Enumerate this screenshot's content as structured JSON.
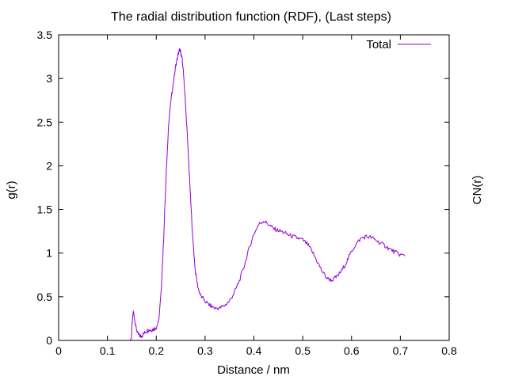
{
  "chart_data": {
    "type": "line",
    "title": "The radial distribution function (RDF), (Last steps)",
    "xlabel": "Distance / nm",
    "ylabel": "g(r)",
    "y2label": "CN(r)",
    "xlim": [
      0,
      0.8
    ],
    "ylim": [
      0,
      3.5
    ],
    "xticks": [
      0,
      0.1,
      0.2,
      0.3,
      0.4,
      0.5,
      0.6,
      0.7,
      0.8
    ],
    "xtick_labels": [
      "0",
      "0.1",
      "0.2",
      "0.3",
      "0.4",
      "0.5",
      "0.6",
      "0.7",
      "0.8"
    ],
    "yticks": [
      0,
      0.5,
      1,
      1.5,
      2,
      2.5,
      3,
      3.5
    ],
    "ytick_labels": [
      "0",
      "0.5",
      "1",
      "1.5",
      "2",
      "2.5",
      "3",
      "3.5"
    ],
    "grid": false,
    "legend_position": "top-right",
    "series": [
      {
        "name": "Total",
        "color": "#9400d3",
        "points": [
          [
            0.145,
            0.0
          ],
          [
            0.149,
            0.02
          ],
          [
            0.151,
            0.22
          ],
          [
            0.153,
            0.33
          ],
          [
            0.155,
            0.27
          ],
          [
            0.158,
            0.16
          ],
          [
            0.162,
            0.08
          ],
          [
            0.166,
            0.05
          ],
          [
            0.17,
            0.05
          ],
          [
            0.175,
            0.08
          ],
          [
            0.18,
            0.11
          ],
          [
            0.185,
            0.12
          ],
          [
            0.19,
            0.12
          ],
          [
            0.195,
            0.13
          ],
          [
            0.2,
            0.15
          ],
          [
            0.205,
            0.22
          ],
          [
            0.21,
            0.55
          ],
          [
            0.215,
            1.15
          ],
          [
            0.22,
            1.85
          ],
          [
            0.225,
            2.45
          ],
          [
            0.23,
            2.75
          ],
          [
            0.235,
            2.95
          ],
          [
            0.24,
            3.15
          ],
          [
            0.245,
            3.28
          ],
          [
            0.248,
            3.33
          ],
          [
            0.25,
            3.3
          ],
          [
            0.253,
            3.22
          ],
          [
            0.256,
            3.05
          ],
          [
            0.26,
            2.7
          ],
          [
            0.265,
            2.2
          ],
          [
            0.27,
            1.65
          ],
          [
            0.275,
            1.15
          ],
          [
            0.28,
            0.8
          ],
          [
            0.285,
            0.62
          ],
          [
            0.29,
            0.52
          ],
          [
            0.3,
            0.45
          ],
          [
            0.31,
            0.4
          ],
          [
            0.32,
            0.37
          ],
          [
            0.33,
            0.37
          ],
          [
            0.34,
            0.4
          ],
          [
            0.35,
            0.45
          ],
          [
            0.36,
            0.55
          ],
          [
            0.37,
            0.68
          ],
          [
            0.38,
            0.85
          ],
          [
            0.39,
            1.05
          ],
          [
            0.4,
            1.22
          ],
          [
            0.41,
            1.33
          ],
          [
            0.42,
            1.37
          ],
          [
            0.43,
            1.33
          ],
          [
            0.44,
            1.28
          ],
          [
            0.45,
            1.26
          ],
          [
            0.46,
            1.24
          ],
          [
            0.47,
            1.21
          ],
          [
            0.48,
            1.19
          ],
          [
            0.49,
            1.17
          ],
          [
            0.5,
            1.15
          ],
          [
            0.51,
            1.1
          ],
          [
            0.52,
            1.01
          ],
          [
            0.53,
            0.9
          ],
          [
            0.54,
            0.79
          ],
          [
            0.55,
            0.71
          ],
          [
            0.56,
            0.69
          ],
          [
            0.57,
            0.73
          ],
          [
            0.58,
            0.8
          ],
          [
            0.59,
            0.9
          ],
          [
            0.6,
            1.02
          ],
          [
            0.61,
            1.11
          ],
          [
            0.62,
            1.17
          ],
          [
            0.63,
            1.19
          ],
          [
            0.64,
            1.18
          ],
          [
            0.65,
            1.15
          ],
          [
            0.66,
            1.11
          ],
          [
            0.67,
            1.08
          ],
          [
            0.68,
            1.04
          ],
          [
            0.69,
            1.01
          ],
          [
            0.7,
            0.98
          ],
          [
            0.71,
            0.97
          ]
        ]
      }
    ]
  }
}
